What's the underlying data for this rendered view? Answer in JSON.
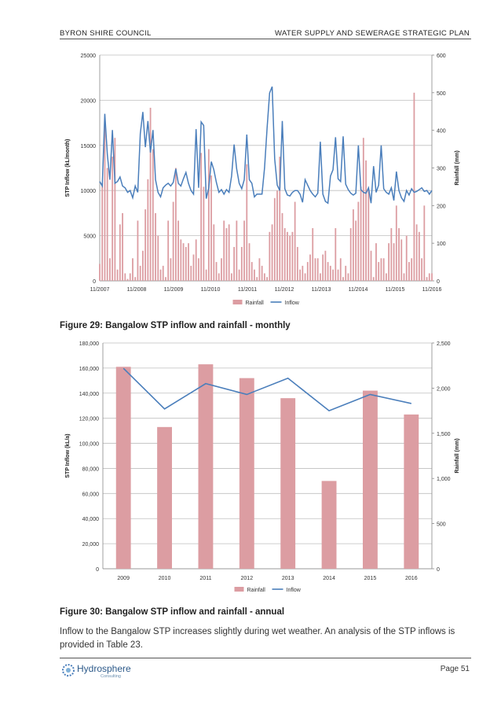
{
  "header": {
    "left": "BYRON SHIRE COUNCIL",
    "right": "WATER SUPPLY AND SEWERAGE STRATEGIC PLAN"
  },
  "figure29": {
    "caption": "Figure 29: Bangalow STP inflow and rainfall - monthly"
  },
  "figure30": {
    "caption": "Figure 30: Bangalow STP inflow and rainfall - annual"
  },
  "body_text": "Inflow to the Bangalow STP increases slightly during wet weather. An analysis of the STP inflows is provided in Table 23.",
  "footer": {
    "logo_text": "Hydrosphere",
    "logo_sub": "Consulting",
    "page": "Page 51"
  },
  "colors": {
    "rainfall": "#dc9da2",
    "inflow": "#4a7ebb",
    "grid": "#bfbfbf"
  },
  "chart_data": [
    {
      "type": "bar",
      "title": "",
      "ylabel": "STP Inflow (kL/month)",
      "y2label": "Rainfall (mm)",
      "ylim": [
        0,
        25000
      ],
      "y2lim": [
        0,
        600
      ],
      "yticks": [
        "0",
        "5000",
        "10000",
        "15000",
        "20000",
        "25000"
      ],
      "y2ticks": [
        "0",
        "100",
        "200",
        "300",
        "400",
        "500",
        "600"
      ],
      "xticks": [
        "11/2007",
        "11/2008",
        "11/2009",
        "11/2010",
        "11/2011",
        "11/2012",
        "11/2013",
        "11/2014",
        "11/2015",
        "11/2016"
      ],
      "legend": [
        "Rainfall",
        "Inflow"
      ],
      "legend_position": "bottom",
      "series": [
        {
          "name": "Rainfall",
          "axis": "right",
          "kind": "bar",
          "values": [
            45,
            260,
            420,
            300,
            60,
            330,
            380,
            30,
            150,
            180,
            20,
            5,
            20,
            60,
            10,
            160,
            40,
            80,
            190,
            270,
            460,
            350,
            180,
            120,
            30,
            40,
            10,
            160,
            60,
            210,
            300,
            160,
            110,
            100,
            90,
            100,
            40,
            70,
            110,
            60,
            340,
            250,
            30,
            350,
            280,
            150,
            50,
            20,
            60,
            160,
            140,
            150,
            20,
            90,
            160,
            30,
            90,
            160,
            310,
            100,
            50,
            30,
            10,
            60,
            40,
            20,
            10,
            130,
            150,
            220,
            240,
            330,
            180,
            140,
            130,
            120,
            130,
            210,
            90,
            30,
            40,
            20,
            50,
            70,
            140,
            60,
            60,
            20,
            70,
            80,
            50,
            40,
            30,
            140,
            30,
            60,
            10,
            40,
            20,
            140,
            190,
            160,
            210,
            250,
            380,
            320,
            240,
            80,
            10,
            100,
            50,
            60,
            60,
            20,
            100,
            140,
            100,
            200,
            140,
            110,
            20,
            120,
            50,
            60,
            500,
            150,
            130,
            60,
            200,
            10,
            20,
            20
          ]
        },
        {
          "name": "Inflow",
          "axis": "left",
          "kind": "line",
          "values": [
            11000,
            10500,
            18500,
            14000,
            11200,
            16700,
            10800,
            11000,
            11500,
            10500,
            10300,
            9800,
            10000,
            9200,
            10500,
            9800,
            16300,
            18700,
            14800,
            17700,
            14200,
            16700,
            11200,
            9800,
            9300,
            10300,
            10600,
            10800,
            10500,
            10900,
            12400,
            10800,
            10500,
            11300,
            12000,
            10800,
            10000,
            9600,
            16800,
            10300,
            17600,
            17200,
            9100,
            10300,
            13200,
            12300,
            10900,
            9800,
            10100,
            9600,
            10100,
            9800,
            11600,
            15100,
            12400,
            10800,
            10200,
            11200,
            16200,
            11200,
            10800,
            9300,
            9600,
            9600,
            9600,
            12500,
            16900,
            20800,
            21500,
            13500,
            10600,
            10000,
            17700,
            10200,
            9500,
            9400,
            9800,
            10000,
            10000,
            9600,
            8700,
            11200,
            10600,
            10000,
            9600,
            9300,
            9700,
            15400,
            9600,
            8800,
            8600,
            11600,
            12300,
            15900,
            11300,
            11000,
            16000,
            10700,
            10100,
            9700,
            9500,
            9700,
            15000,
            10100,
            9800,
            9700,
            10300,
            8600,
            12700,
            9800,
            10600,
            15000,
            10200,
            9800,
            9600,
            10300,
            8900,
            12100,
            10000,
            9200,
            8800,
            10000,
            9500,
            10200,
            9800,
            9900,
            10100,
            10300,
            9900,
            10000,
            9600,
            10000
          ]
        }
      ]
    },
    {
      "type": "bar",
      "title": "",
      "ylabel": "STP Inflow (kL/a)",
      "y2label": "Rainfall (mm)",
      "ylim": [
        0,
        180000
      ],
      "y2lim": [
        0,
        2500
      ],
      "yticks": [
        "0",
        "20,000",
        "40,000",
        "60,000",
        "80,000",
        "100,000",
        "120,000",
        "140,000",
        "160,000",
        "180,000"
      ],
      "y2ticks": [
        "0",
        "500",
        "1,000",
        "1,500",
        "2,000",
        "2,500"
      ],
      "categories": [
        "2009",
        "2010",
        "2011",
        "2012",
        "2013",
        "2014",
        "2015",
        "2016"
      ],
      "legend": [
        "Rainfall",
        "Inflow"
      ],
      "legend_position": "bottom",
      "series": [
        {
          "name": "Rainfall",
          "axis": "left",
          "kind": "bar",
          "values": [
            161000,
            113000,
            163000,
            152000,
            136000,
            70000,
            142000,
            123000
          ]
        },
        {
          "name": "Inflow",
          "axis": "right",
          "kind": "line",
          "values": [
            2220,
            1770,
            2050,
            1930,
            2110,
            1750,
            1930,
            1830
          ]
        }
      ]
    }
  ]
}
